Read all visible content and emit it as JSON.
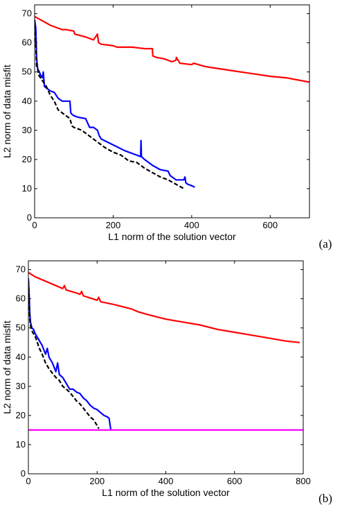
{
  "chart_data": [
    {
      "type": "line",
      "panel_label": "(a)",
      "xlabel": "L1 norm of the solution vector",
      "ylabel": "L2 norm of data misfit",
      "xlim": [
        0,
        700
      ],
      "ylim": [
        0,
        73
      ],
      "xticks": [
        0,
        200,
        400,
        600
      ],
      "yticks": [
        0,
        10,
        20,
        30,
        40,
        50,
        60,
        70
      ],
      "grid": false,
      "series": [
        {
          "color": "#ff0000",
          "style": "solid",
          "x": [
            0,
            20,
            40,
            60,
            70,
            75,
            80,
            100,
            102,
            130,
            150,
            155,
            160,
            163,
            170,
            200,
            210,
            250,
            260,
            280,
            300,
            301,
            310,
            330,
            350,
            360,
            361,
            370,
            400,
            405,
            430,
            450,
            500,
            550,
            600,
            640,
            660,
            700
          ],
          "y": [
            69,
            67.5,
            66,
            65,
            64.5,
            64.5,
            64.5,
            64,
            63,
            62,
            61,
            62,
            63,
            60,
            59.5,
            59,
            58.5,
            58.5,
            58.3,
            58,
            58,
            55.5,
            55,
            54.5,
            53.5,
            54,
            55,
            53,
            52.5,
            53,
            52,
            51.5,
            50.5,
            49.5,
            48.5,
            48,
            47.5,
            46.5
          ]
        },
        {
          "color": "#0000ff",
          "style": "solid",
          "x": [
            0,
            3,
            5,
            7,
            8,
            12,
            15,
            20,
            22,
            25,
            30,
            40,
            50,
            55,
            60,
            70,
            80,
            90,
            92,
            95,
            100,
            110,
            130,
            140,
            150,
            160,
            165,
            170,
            200,
            230,
            250,
            270,
            271,
            272,
            280,
            300,
            320,
            340,
            345,
            360,
            380,
            383,
            385,
            390,
            400,
            408
          ],
          "y": [
            68,
            65,
            55,
            52,
            51,
            50,
            49,
            48,
            50,
            45,
            44.5,
            43.5,
            43,
            42,
            41,
            40,
            40,
            40,
            36,
            35.5,
            35,
            34.5,
            34,
            31,
            31,
            30,
            28,
            27,
            25,
            23,
            22,
            21,
            26.5,
            21,
            20,
            18,
            16.5,
            16,
            14.5,
            13,
            13,
            14,
            12,
            11.5,
            11,
            10.5
          ]
        },
        {
          "color": "#000000",
          "style": "dashed",
          "x": [
            0,
            3,
            5,
            8,
            10,
            15,
            20,
            30,
            40,
            50,
            60,
            70,
            80,
            90,
            95,
            100,
            120,
            140,
            160,
            180,
            200,
            220,
            240,
            260,
            280,
            300,
            320,
            340,
            360,
            380
          ],
          "y": [
            66,
            60,
            52,
            51,
            49,
            48,
            47,
            45,
            42,
            40,
            37,
            36,
            35,
            34,
            31.5,
            31,
            30,
            28,
            26,
            24,
            22.5,
            21.5,
            19.5,
            19,
            17,
            15.5,
            14,
            13,
            11.5,
            10
          ]
        }
      ]
    },
    {
      "type": "line",
      "panel_label": "(b)",
      "xlabel": "L1 norm of the solution vector",
      "ylabel": "L2 norm of data misfit",
      "xlim": [
        0,
        800
      ],
      "ylim": [
        0,
        73
      ],
      "xticks": [
        0,
        200,
        400,
        600,
        800
      ],
      "yticks": [
        0,
        10,
        20,
        30,
        40,
        50,
        60,
        70
      ],
      "grid": false,
      "series": [
        {
          "color": "#ff0000",
          "style": "solid",
          "x": [
            0,
            20,
            40,
            60,
            80,
            100,
            105,
            110,
            140,
            150,
            155,
            160,
            200,
            205,
            210,
            250,
            300,
            320,
            350,
            400,
            450,
            500,
            550,
            600,
            650,
            700,
            750,
            790
          ],
          "y": [
            69,
            67.5,
            66.5,
            65.5,
            64.5,
            63.5,
            64.5,
            63,
            62,
            61.5,
            62.5,
            61,
            59.5,
            60.5,
            59,
            58,
            56.5,
            55.5,
            54.5,
            53,
            52,
            51,
            49.5,
            48.5,
            47.5,
            46.5,
            45.5,
            45
          ]
        },
        {
          "color": "#0000ff",
          "style": "solid",
          "x": [
            0,
            2,
            4,
            6,
            8,
            10,
            15,
            20,
            25,
            30,
            40,
            50,
            55,
            60,
            70,
            80,
            85,
            90,
            100,
            110,
            120,
            130,
            140,
            150,
            160,
            170,
            180,
            190,
            200,
            210,
            220,
            230,
            235,
            240
          ],
          "y": [
            67,
            62,
            55,
            52,
            51,
            50,
            49.5,
            48,
            47,
            46,
            44,
            41,
            43,
            40,
            38,
            35,
            38,
            34,
            33,
            31,
            29,
            29,
            28,
            27.5,
            26,
            25,
            23.5,
            22.5,
            22,
            21,
            20,
            19.5,
            19,
            15
          ]
        },
        {
          "color": "#000000",
          "style": "dashed",
          "x": [
            0,
            2,
            4,
            6,
            8,
            10,
            15,
            20,
            25,
            30,
            40,
            50,
            60,
            70,
            80,
            90,
            100,
            110,
            120,
            130,
            140,
            150,
            160,
            170,
            180,
            190,
            200,
            205
          ],
          "y": [
            66,
            60,
            53,
            51,
            50,
            49,
            48,
            47,
            45.5,
            43.5,
            41,
            38,
            36,
            34.5,
            33,
            32,
            30,
            29,
            28,
            26.5,
            25,
            24,
            22.5,
            21,
            19.5,
            18.5,
            16.5,
            15.5
          ]
        },
        {
          "color": "#ff00ff",
          "style": "solid",
          "x": [
            0,
            800
          ],
          "y": [
            15,
            15
          ]
        }
      ]
    }
  ]
}
